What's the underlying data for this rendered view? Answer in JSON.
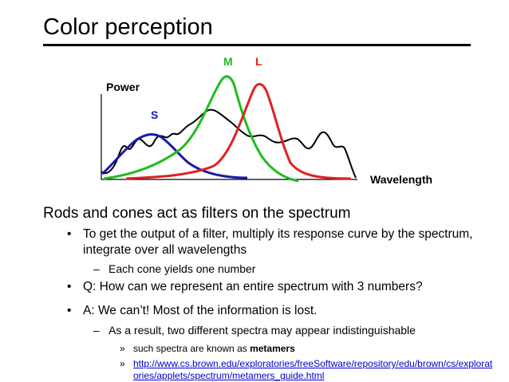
{
  "slide": {
    "title": "Color perception",
    "heading": "Rods and cones act as filters on the spectrum"
  },
  "figure": {
    "power_label": "Power",
    "wavelength_label": "Wavelength",
    "curves": [
      {
        "label": "S",
        "color": "#1a1aaa"
      },
      {
        "label": "M",
        "color": "#22bb22"
      },
      {
        "label": "L",
        "color": "#dd2222"
      }
    ],
    "spectrum_color": "#000000"
  },
  "bullets": {
    "b1": "To get the output of a filter, multiply its response curve by the spectrum, integrate over all wavelengths",
    "b1_sub": "Each cone yields one number",
    "b2": "Q:  How can we represent an entire spectrum with 3 numbers?",
    "b3": "A:  We can’t!  Most of the information is lost.",
    "b3_sub": "As a result, two different spectra may appear indistinguishable",
    "b3_sub_sub1_prefix": "such spectra are known as ",
    "b3_sub_sub1_bold": "metamers",
    "b3_sub_sub2_link": "http://www.cs.brown.edu/exploratories/freeSoftware/repository/edu/brown/cs/exploratories/applets/spectrum/metamers_guide.html"
  },
  "markers": {
    "level1": "•",
    "level2": "–",
    "level3": "»"
  }
}
